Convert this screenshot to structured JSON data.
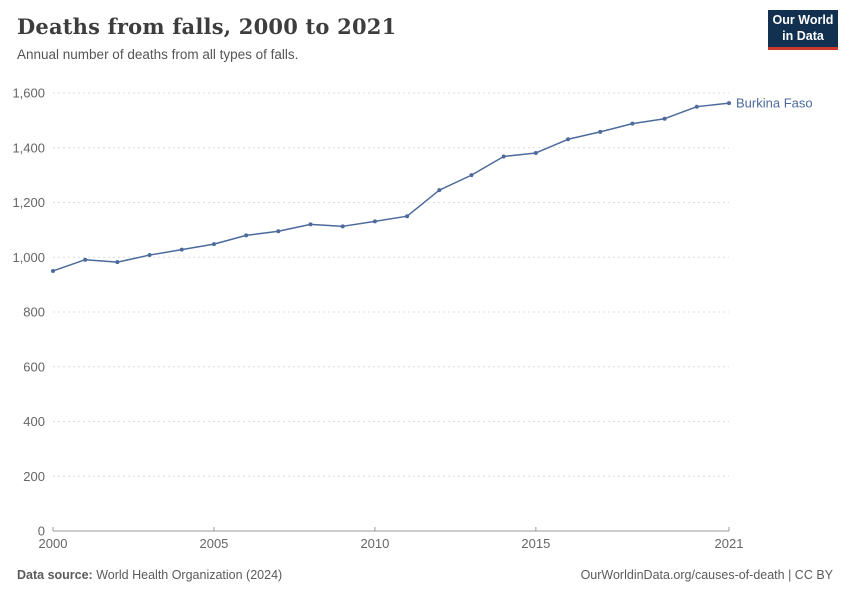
{
  "header": {
    "title": "Deaths from falls, 2000 to 2021",
    "subtitle": "Annual number of deaths from all types of falls.",
    "logo": {
      "line1": "Our World",
      "line2": "in Data"
    }
  },
  "chart_data": {
    "type": "line",
    "title": "Deaths from falls, 2000 to 2021",
    "subtitle": "Annual number of deaths from all types of falls.",
    "xlabel": "",
    "ylabel": "",
    "xlim": [
      2000,
      2021
    ],
    "ylim": [
      0,
      1600
    ],
    "x_ticks": [
      2000,
      2005,
      2010,
      2015,
      2021
    ],
    "y_ticks": [
      0,
      200,
      400,
      600,
      800,
      1000,
      1200,
      1400,
      1600
    ],
    "grid": "horizontal-dashed",
    "legend": "end-of-line-label",
    "colors": {
      "line": "#4C6A9C",
      "grid": "#dcdcdc",
      "axis": "#999999",
      "tick_label": "#666666"
    },
    "series": [
      {
        "name": "Burkina Faso",
        "color": "#4C6A9C",
        "x": [
          2000,
          2001,
          2002,
          2003,
          2004,
          2005,
          2006,
          2007,
          2008,
          2009,
          2010,
          2011,
          2012,
          2013,
          2014,
          2015,
          2016,
          2017,
          2018,
          2019,
          2020,
          2021
        ],
        "values": [
          950,
          991,
          982,
          1008,
          1028,
          1048,
          1080,
          1095,
          1120,
          1113,
          1131,
          1150,
          1245,
          1300,
          1368,
          1381,
          1431,
          1458,
          1488,
          1506,
          1550,
          1563
        ]
      }
    ]
  },
  "footer": {
    "datasource_label": "Data source:",
    "datasource_value": "World Health Organization (2024)",
    "link": "OurWorldinData.org/causes-of-death | CC BY"
  }
}
